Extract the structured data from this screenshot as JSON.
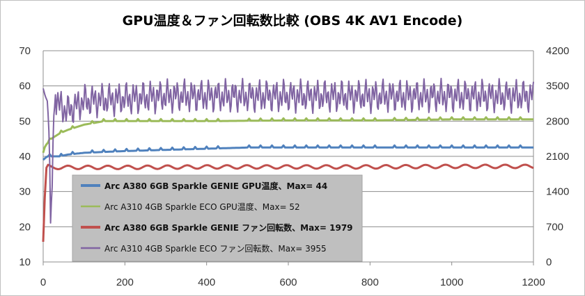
{
  "chart_data": {
    "type": "line",
    "title": "GPU温度＆ファン回転数比較 (OBS 4K AV1 Encode)",
    "x_ticks": [
      "0",
      "200",
      "400",
      "600",
      "800",
      "1000",
      "1200"
    ],
    "y_left_ticks": [
      "10",
      "20",
      "30",
      "40",
      "50",
      "60",
      "70"
    ],
    "y_right_ticks": [
      "0",
      "700",
      "1400",
      "2100",
      "2800",
      "3500",
      "4200"
    ],
    "xlim": [
      0,
      1200
    ],
    "ylim_left": [
      10,
      70
    ],
    "ylim_right": [
      0,
      4200
    ],
    "grid": "horizontal",
    "legend_position": "center-left",
    "series": [
      {
        "name": "Arc A380 6GB Sparkle GENIE GPU温度、Max= 44",
        "axis": "left",
        "color": "#4f81bd",
        "bold": true,
        "x": [
          0,
          10,
          40,
          60,
          100,
          200,
          350,
          500,
          800,
          1000,
          1200
        ],
        "y": [
          39,
          40,
          40,
          40.5,
          41,
          41.5,
          42,
          42.5,
          42.5,
          42.5,
          42.5
        ]
      },
      {
        "name": "Arc A310 4GB Sparkle ECO GPU温度、Max= 52",
        "axis": "left",
        "color": "#9bbb59",
        "bold": false,
        "x": [
          0,
          5,
          20,
          40,
          60,
          100,
          150,
          200,
          400,
          600,
          800,
          1000,
          1200
        ],
        "y": [
          41,
          43,
          45,
          46.5,
          47.5,
          49,
          50,
          50,
          50,
          50.2,
          50.2,
          50.5,
          50.5
        ]
      },
      {
        "name": "Arc A380 6GB Sparkle GENIE ファン回転数、Max= 1979",
        "axis": "right",
        "color": "#c0504d",
        "bold": true,
        "x": [
          0,
          3,
          6,
          10,
          20,
          100,
          200,
          400,
          600,
          800,
          1000,
          1200
        ],
        "y": [
          400,
          1000,
          1850,
          1900,
          1880,
          1880,
          1880,
          1890,
          1890,
          1890,
          1900,
          1900
        ]
      },
      {
        "name": "Arc A310 4GB Sparkle ECO ファン回転数、Max= 3955",
        "axis": "right",
        "color": "#8064a2",
        "bold": false,
        "x": [
          0,
          5,
          10,
          15,
          18,
          22,
          25,
          30,
          40,
          60,
          100,
          200,
          300,
          400,
          500,
          600,
          700,
          800,
          900,
          1000,
          1100,
          1200
        ],
        "y": [
          3450,
          3300,
          3200,
          2500,
          800,
          1500,
          2800,
          3300,
          3100,
          3000,
          3200,
          3250,
          3300,
          3300,
          3300,
          3300,
          3300,
          3300,
          3300,
          3300,
          3300,
          3300
        ],
        "oscillation_amplitude": 350
      }
    ]
  }
}
